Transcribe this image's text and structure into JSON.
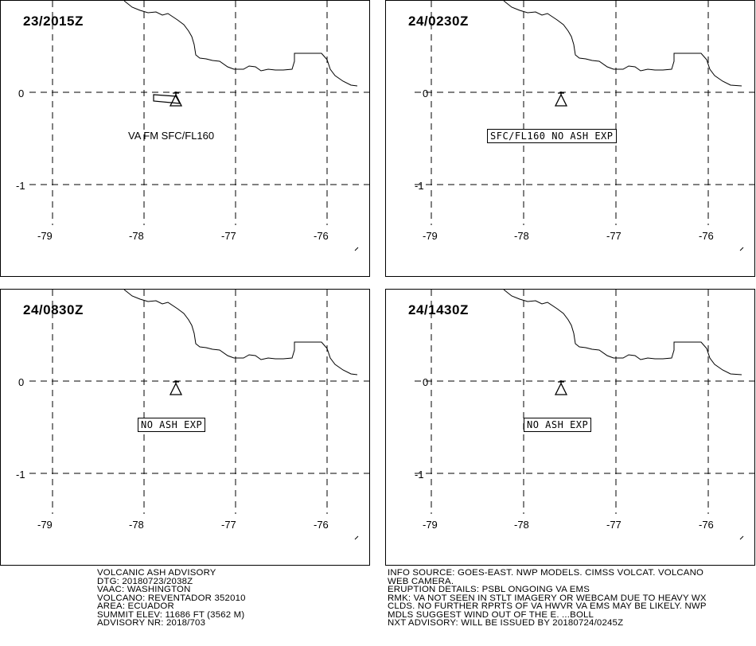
{
  "panels": [
    {
      "time": "23/2015Z",
      "label": "VA FM SFC/FL160",
      "label_style": "plain",
      "ash_polygon": true
    },
    {
      "time": "24/0230Z",
      "label": "SFC/FL160 NO ASH EXP",
      "label_style": "boxed",
      "ash_polygon": false
    },
    {
      "time": "24/0830Z",
      "label": "NO ASH EXP",
      "label_style": "boxed",
      "ash_polygon": false
    },
    {
      "time": "24/1430Z",
      "label": "NO ASH EXP",
      "label_style": "boxed",
      "ash_polygon": false
    }
  ],
  "axes": {
    "lon_labels": [
      "-79",
      "-78",
      "-77",
      "-76"
    ],
    "lat_labels": [
      "0",
      "-1"
    ]
  },
  "footer_left": [
    "VOLCANIC ASH ADVISORY",
    "DTG: 20180723/2038Z",
    "VAAC: WASHINGTON",
    "VOLCANO: REVENTADOR 352010",
    "AREA: ECUADOR",
    "SUMMIT ELEV: 11686 FT (3562 M)",
    "ADVISORY NR: 2018/703"
  ],
  "footer_right": [
    "INFO SOURCE: GOES-EAST. NWP MODELS. CIMSS VOLCAT. VOLCANO",
    "WEB CAMERA.",
    "ERUPTION DETAILS: PSBL ONGOING VA EMS",
    "RMK: VA NOT SEEN IN STLT IMAGERY OR WEBCAM DUE TO HEAVY WX",
    "CLDS. NO FURTHER RPRTS OF VA HWVR VA EMS MAY BE LIKELY. NWP",
    "MDLS SUGGEST WIND OUT OF THE E. ...BOLL",
    "NXT ADVISORY: WILL BE ISSUED BY 20180724/0245Z"
  ],
  "colors": {
    "line": "#000000",
    "background": "#ffffff"
  },
  "icons": {
    "volcano": "volcano-triangle-icon"
  }
}
